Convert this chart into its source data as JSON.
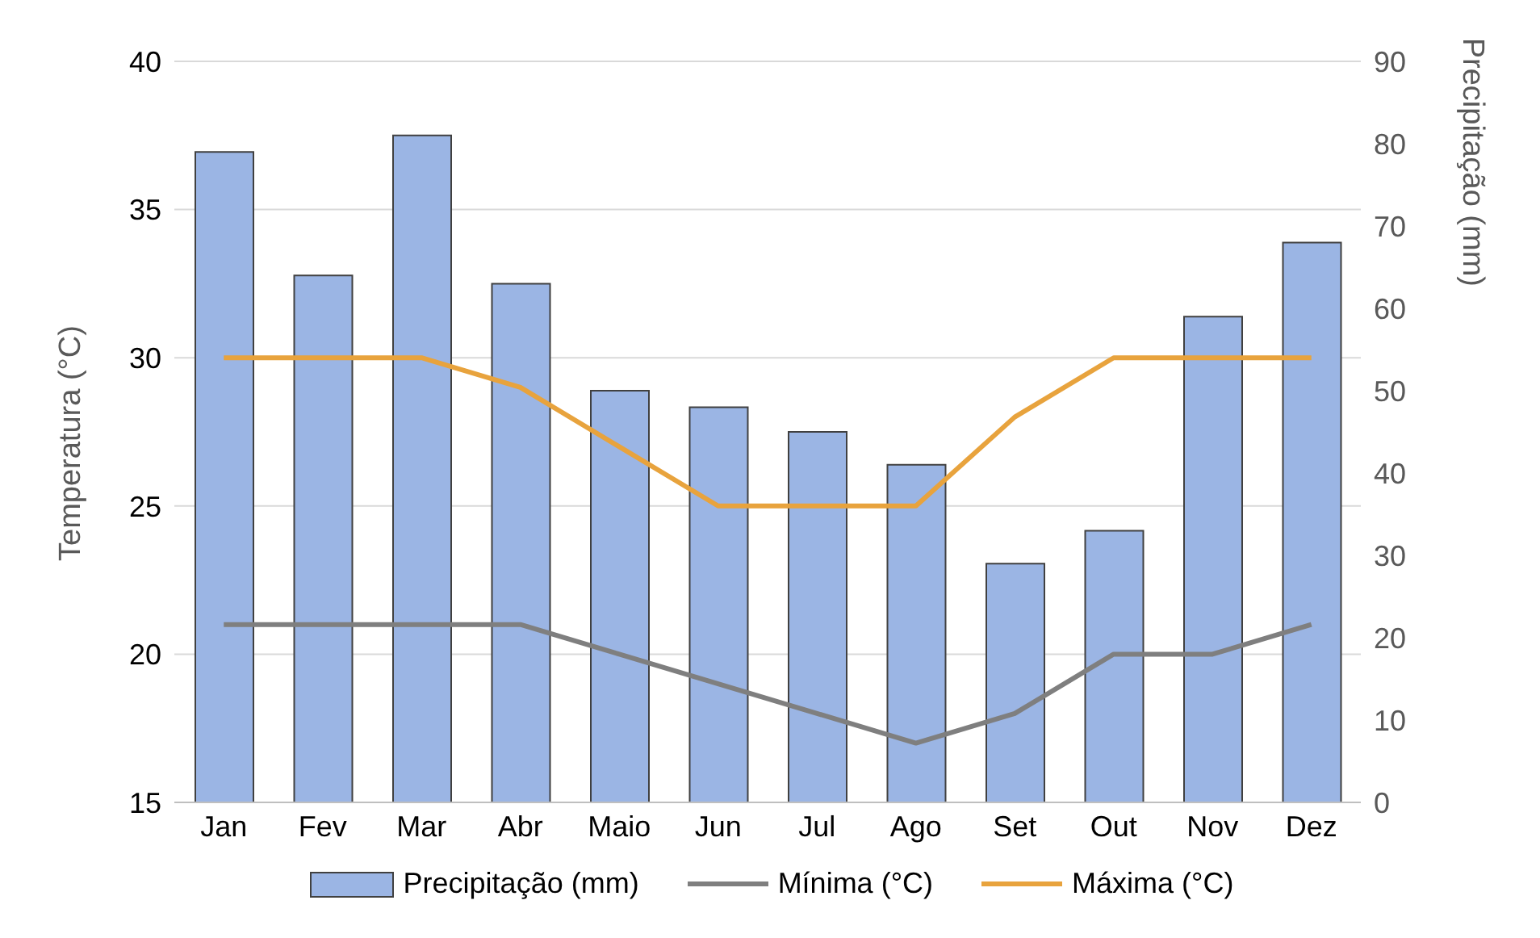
{
  "chart_data": {
    "type": "bar",
    "categories": [
      "Jan",
      "Fev",
      "Mar",
      "Abr",
      "Maio",
      "Jun",
      "Jul",
      "Ago",
      "Set",
      "Out",
      "Nov",
      "Dez"
    ],
    "ylabel": "Temperatura (°C)",
    "y2label": "Precipitação (mm)",
    "ylim": [
      15,
      40
    ],
    "yticks": [
      15,
      20,
      25,
      30,
      35,
      40
    ],
    "y2lim": [
      0,
      90
    ],
    "y2ticks": [
      0,
      10,
      20,
      30,
      40,
      50,
      60,
      70,
      80,
      90
    ],
    "grid": "y",
    "legend": "bottom",
    "series": [
      {
        "name": "Precipitação (mm)",
        "axis": "y2",
        "color": "#9bb5e4",
        "values": [
          79,
          64,
          81,
          63,
          50,
          48,
          45,
          41,
          29,
          33,
          59,
          68
        ]
      },
      {
        "name": "Mínima (°C)",
        "type": "line",
        "color": "#7f7f7f",
        "values": [
          21,
          21,
          21,
          21,
          20,
          19,
          18,
          17,
          18,
          20,
          20,
          21
        ]
      },
      {
        "name": "Máxima (°C)",
        "type": "line",
        "color": "#e8a33d",
        "values": [
          30,
          30,
          30,
          29,
          27,
          25,
          25,
          25,
          28,
          30,
          30,
          30
        ]
      }
    ]
  }
}
